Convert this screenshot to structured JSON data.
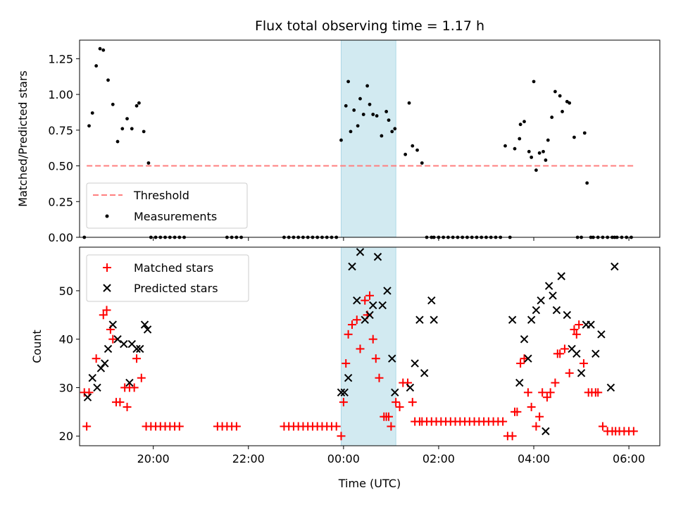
{
  "chart_data": [
    {
      "type": "scatter",
      "title": "Flux total observing time = 1.17 h",
      "ylabel": "Matched/Predicted stars",
      "xlabel": "",
      "x_unit": "hours (relative to 00:00 UTC)",
      "xlim": [
        -5.55,
        6.65
      ],
      "ylim": [
        0.0,
        1.38
      ],
      "yticks": [
        "0.00",
        "0.25",
        "0.50",
        "0.75",
        "1.00",
        "1.25"
      ],
      "grid": false,
      "legend_position": "lower-left",
      "highlight_span": [
        -0.05,
        1.1
      ],
      "highlight_color": "#add8e6",
      "series": [
        {
          "name": "Threshold",
          "kind": "dashed-line",
          "color": "#ff7f7f",
          "x": [
            -5.4,
            6.1
          ],
          "y": [
            0.5,
            0.5
          ]
        },
        {
          "name": "Measurements",
          "kind": "points",
          "color": "#000000",
          "x": [
            -5.45,
            -5.35,
            -5.28,
            -5.2,
            -5.12,
            -5.05,
            -4.95,
            -4.85,
            -4.75,
            -4.65,
            -4.55,
            -4.45,
            -4.35,
            -4.3,
            -4.2,
            -4.1,
            -4.05,
            -3.95,
            -3.85,
            -3.75,
            -3.65,
            -3.55,
            -3.45,
            -3.35,
            -2.45,
            -2.35,
            -2.25,
            -2.15,
            -1.25,
            -1.15,
            -1.05,
            -0.95,
            -0.85,
            -0.75,
            -0.65,
            -0.55,
            -0.45,
            -0.35,
            -0.25,
            -0.15,
            -0.05,
            0.05,
            0.1,
            0.15,
            0.22,
            0.3,
            0.35,
            0.42,
            0.5,
            0.55,
            0.62,
            0.7,
            0.8,
            0.9,
            0.95,
            1.02,
            1.08,
            1.3,
            1.38,
            1.45,
            1.55,
            1.65,
            1.75,
            1.85,
            1.9,
            2.0,
            2.1,
            2.2,
            2.3,
            2.4,
            2.5,
            2.6,
            2.7,
            2.8,
            2.9,
            3.0,
            3.1,
            3.2,
            3.3,
            3.4,
            3.5,
            3.6,
            3.7,
            3.72,
            3.8,
            3.9,
            3.95,
            4.0,
            4.05,
            4.12,
            4.2,
            4.25,
            4.3,
            4.38,
            4.45,
            4.55,
            4.6,
            4.7,
            4.75,
            4.85,
            4.92,
            5.0,
            5.07,
            5.12,
            5.2,
            5.25,
            5.35,
            5.45,
            5.55,
            5.65,
            5.7,
            5.75,
            5.85,
            5.95,
            6.05
          ],
          "y": [
            0.0,
            0.78,
            0.87,
            1.2,
            1.32,
            1.31,
            1.1,
            0.93,
            0.67,
            0.76,
            0.83,
            0.76,
            0.92,
            0.94,
            0.74,
            0.52,
            0.0,
            0.0,
            0.0,
            0.0,
            0.0,
            0.0,
            0.0,
            0.0,
            0.0,
            0.0,
            0.0,
            0.0,
            0.0,
            0.0,
            0.0,
            0.0,
            0.0,
            0.0,
            0.0,
            0.0,
            0.0,
            0.0,
            0.0,
            0.0,
            0.68,
            0.92,
            1.09,
            0.74,
            0.89,
            0.78,
            0.97,
            0.86,
            1.06,
            0.93,
            0.86,
            0.85,
            0.71,
            0.88,
            0.82,
            0.74,
            0.76,
            0.58,
            0.94,
            0.64,
            0.61,
            0.52,
            0.0,
            0.0,
            0.0,
            0.0,
            0.0,
            0.0,
            0.0,
            0.0,
            0.0,
            0.0,
            0.0,
            0.0,
            0.0,
            0.0,
            0.0,
            0.0,
            0.0,
            0.64,
            0.0,
            0.62,
            0.69,
            0.79,
            0.81,
            0.6,
            0.56,
            1.09,
            0.47,
            0.59,
            0.6,
            0.54,
            0.68,
            0.84,
            1.02,
            0.99,
            0.88,
            0.95,
            0.94,
            0.7,
            0.0,
            0.0,
            0.73,
            0.38,
            0.0,
            0.0,
            0.0,
            0.0,
            0.0,
            0.0,
            0.0,
            0.0,
            0.0,
            0.0,
            0.0
          ]
        }
      ]
    },
    {
      "type": "scatter",
      "title": "",
      "ylabel": "Count",
      "xlabel": "Time (UTC)",
      "x_unit": "hours (relative to 00:00 UTC)",
      "xlim": [
        -5.55,
        6.65
      ],
      "ylim": [
        18,
        59
      ],
      "yticks": [
        "20",
        "30",
        "40",
        "50"
      ],
      "xtick_values": [
        -4,
        -2,
        0,
        2,
        4,
        6
      ],
      "xtick_labels": [
        "20:00",
        "22:00",
        "00:00",
        "02:00",
        "04:00",
        "06:00"
      ],
      "grid": false,
      "legend_position": "upper-left",
      "highlight_span": [
        -0.05,
        1.1
      ],
      "highlight_color": "#add8e6",
      "series": [
        {
          "name": "Matched stars",
          "marker": "plus",
          "color": "#ff0000",
          "x": [
            -5.45,
            -5.4,
            -5.35,
            -5.2,
            -5.05,
            -4.98,
            -4.9,
            -4.85,
            -4.78,
            -4.7,
            -4.6,
            -4.55,
            -4.5,
            -4.4,
            -4.35,
            -4.25,
            -4.15,
            -4.05,
            -3.95,
            -3.85,
            -3.75,
            -3.65,
            -3.55,
            -3.45,
            -2.65,
            -2.55,
            -2.45,
            -2.35,
            -2.25,
            -1.25,
            -1.15,
            -1.05,
            -0.95,
            -0.85,
            -0.75,
            -0.65,
            -0.55,
            -0.45,
            -0.35,
            -0.25,
            -0.15,
            -0.05,
            0.0,
            0.05,
            0.1,
            0.18,
            0.28,
            0.35,
            0.45,
            0.5,
            0.55,
            0.62,
            0.68,
            0.75,
            0.85,
            0.9,
            0.95,
            1.0,
            1.1,
            1.18,
            1.25,
            1.35,
            1.45,
            1.5,
            1.6,
            1.65,
            1.75,
            1.85,
            1.95,
            2.05,
            2.15,
            2.25,
            2.35,
            2.45,
            2.55,
            2.65,
            2.75,
            2.85,
            2.95,
            3.05,
            3.15,
            3.25,
            3.35,
            3.45,
            3.55,
            3.6,
            3.65,
            3.72,
            3.8,
            3.88,
            3.95,
            4.05,
            4.12,
            4.18,
            4.28,
            4.35,
            4.45,
            4.5,
            4.55,
            4.65,
            4.75,
            4.85,
            4.9,
            4.95,
            5.05,
            5.15,
            5.22,
            5.3,
            5.35,
            5.45,
            5.55,
            5.65,
            5.72,
            5.8,
            5.9,
            6.0,
            6.1
          ],
          "y": [
            29,
            22,
            29,
            36,
            45,
            46,
            42,
            40,
            27,
            27,
            30,
            26,
            30,
            30,
            36,
            32,
            22,
            22,
            22,
            22,
            22,
            22,
            22,
            22,
            22,
            22,
            22,
            22,
            22,
            22,
            22,
            22,
            22,
            22,
            22,
            22,
            22,
            22,
            22,
            22,
            22,
            20,
            27,
            35,
            41,
            43,
            44,
            38,
            48,
            45,
            49,
            40,
            36,
            32,
            24,
            24,
            24,
            22,
            27,
            26,
            31,
            31,
            27,
            23,
            23,
            23,
            23,
            23,
            23,
            23,
            23,
            23,
            23,
            23,
            23,
            23,
            23,
            23,
            23,
            23,
            23,
            23,
            23,
            20,
            20,
            25,
            25,
            35,
            36,
            29,
            26,
            22,
            24,
            29,
            28,
            29,
            31,
            37,
            37,
            38,
            33,
            42,
            41,
            43,
            35,
            29,
            29,
            29,
            29,
            22,
            21,
            21,
            21,
            21,
            21,
            21,
            21
          ]
        },
        {
          "name": "Predicted stars",
          "marker": "cross",
          "color": "#000000",
          "x": [
            -5.38,
            -5.28,
            -5.18,
            -5.1,
            -5.02,
            -4.95,
            -4.85,
            -4.75,
            -4.62,
            -4.5,
            -4.45,
            -4.35,
            -4.28,
            -4.18,
            -4.12,
            -0.05,
            0.02,
            0.1,
            0.18,
            0.28,
            0.35,
            0.45,
            0.55,
            0.62,
            0.72,
            0.82,
            0.92,
            1.02,
            1.08,
            1.4,
            1.5,
            1.6,
            1.7,
            1.85,
            1.9,
            3.55,
            3.7,
            3.8,
            3.88,
            3.95,
            4.05,
            4.15,
            4.25,
            4.32,
            4.4,
            4.48,
            4.58,
            4.7,
            4.8,
            4.9,
            5.0,
            5.1,
            5.2,
            5.3,
            5.42,
            5.62,
            5.7
          ],
          "y": [
            28,
            32,
            30,
            34,
            35,
            38,
            43,
            40,
            39,
            31,
            39,
            38,
            38,
            43,
            42,
            29,
            29,
            32,
            55,
            48,
            58,
            44,
            45,
            47,
            57,
            47,
            50,
            36,
            29,
            30,
            35,
            44,
            33,
            48,
            44,
            44,
            31,
            40,
            36,
            44,
            46,
            48,
            21,
            51,
            49,
            46,
            53,
            45,
            38,
            37,
            33,
            43,
            43,
            37,
            41,
            30,
            55
          ]
        }
      ]
    }
  ]
}
